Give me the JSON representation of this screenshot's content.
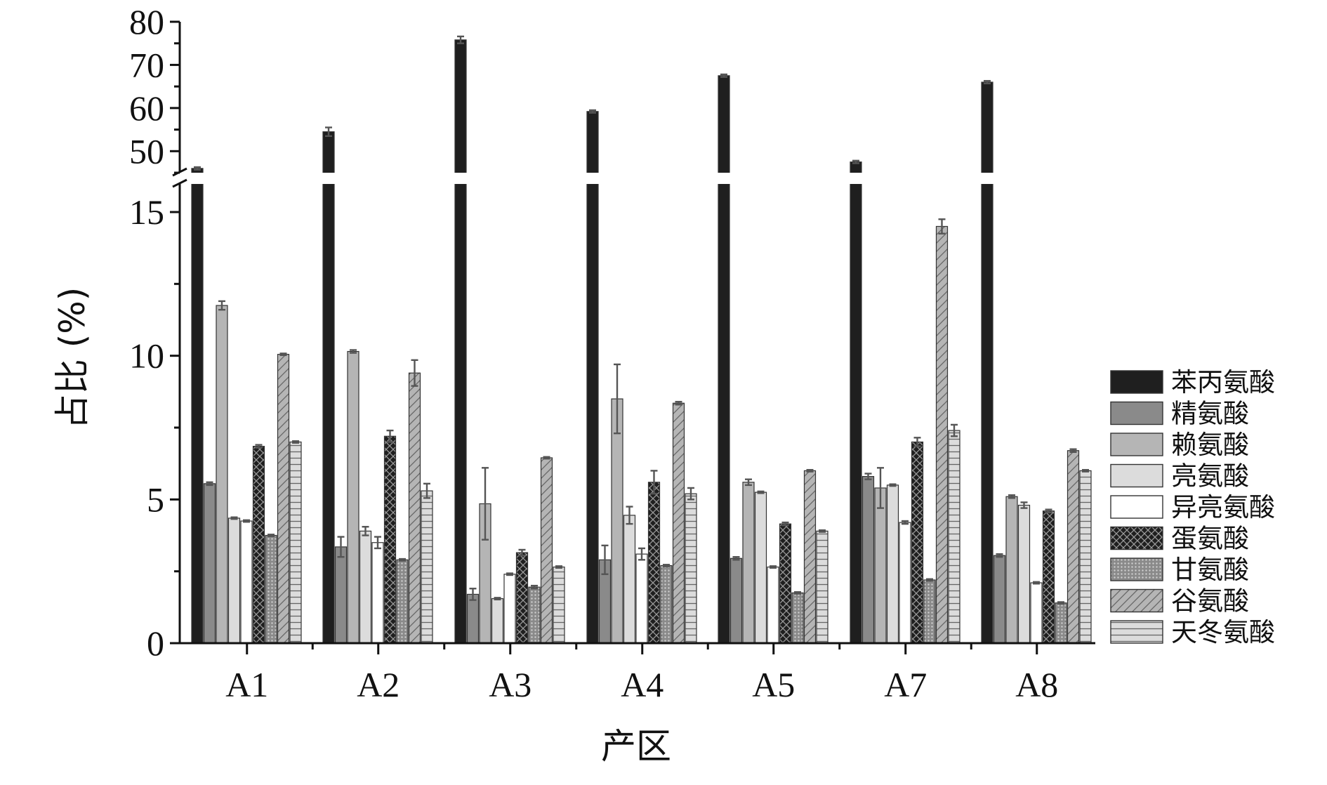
{
  "chart_data": {
    "type": "bar",
    "xlabel": "产区",
    "ylabel": "占比 (%)",
    "categories": [
      "A1",
      "A2",
      "A3",
      "A4",
      "A5",
      "A7",
      "A8"
    ],
    "y_axis_break": {
      "lower_range": [
        0,
        16
      ],
      "upper_range": [
        45,
        80
      ]
    },
    "y_ticks_lower": [
      "0",
      "5",
      "10",
      "15"
    ],
    "y_ticks_upper": [
      "50",
      "60",
      "70",
      "80"
    ],
    "legend_position": "right",
    "series": [
      {
        "name": "苯丙氨酸",
        "fill": "#1f1f1f",
        "pattern": "solid",
        "values": [
          46.0,
          54.5,
          75.8,
          59.2,
          67.5,
          47.5,
          66.0
        ],
        "errors": [
          0.3,
          1.0,
          0.8,
          0.3,
          0.3,
          0.3,
          0.3
        ]
      },
      {
        "name": "精氨酸",
        "fill": "#8a8a8a",
        "pattern": "solid",
        "values": [
          5.55,
          3.35,
          1.7,
          2.9,
          2.95,
          5.8,
          3.05
        ],
        "errors": [
          0.05,
          0.35,
          0.2,
          0.5,
          0.05,
          0.1,
          0.05
        ]
      },
      {
        "name": "赖氨酸",
        "fill": "#b5b5b5",
        "pattern": "solid",
        "values": [
          11.75,
          10.15,
          4.85,
          8.5,
          5.6,
          5.4,
          5.1
        ],
        "errors": [
          0.15,
          0.05,
          1.25,
          1.2,
          0.1,
          0.7,
          0.05
        ]
      },
      {
        "name": "亮氨酸",
        "fill": "#dcdcdc",
        "pattern": "solid",
        "values": [
          4.35,
          3.9,
          1.55,
          4.45,
          5.25,
          5.5,
          4.8
        ],
        "errors": [
          0.03,
          0.15,
          0.03,
          0.3,
          0.03,
          0.03,
          0.1
        ]
      },
      {
        "name": "异亮氨酸",
        "fill": "#ffffff",
        "pattern": "solid",
        "values": [
          4.25,
          3.5,
          2.4,
          3.1,
          2.65,
          4.2,
          2.1
        ],
        "errors": [
          0.03,
          0.2,
          0.03,
          0.2,
          0.03,
          0.05,
          0.03
        ]
      },
      {
        "name": "蛋氨酸",
        "fill": "#1f1f1f",
        "pattern": "crosshatch",
        "values": [
          6.85,
          7.2,
          3.15,
          5.6,
          4.15,
          7.0,
          4.6
        ],
        "errors": [
          0.05,
          0.2,
          0.1,
          0.4,
          0.05,
          0.15,
          0.05
        ]
      },
      {
        "name": "甘氨酸",
        "fill": "#8a8a8a",
        "pattern": "dots",
        "values": [
          3.75,
          2.9,
          1.95,
          2.7,
          1.75,
          2.2,
          1.4
        ],
        "errors": [
          0.03,
          0.03,
          0.05,
          0.03,
          0.03,
          0.03,
          0.03
        ]
      },
      {
        "name": "谷氨酸",
        "fill": "#b5b5b5",
        "pattern": "diagonal",
        "values": [
          10.05,
          9.4,
          6.45,
          8.35,
          6.0,
          14.5,
          6.7
        ],
        "errors": [
          0.03,
          0.45,
          0.03,
          0.05,
          0.03,
          0.25,
          0.05
        ]
      },
      {
        "name": "天冬氨酸",
        "fill": "#dcdcdc",
        "pattern": "horizontal",
        "values": [
          7.0,
          5.3,
          2.65,
          5.2,
          3.9,
          7.4,
          6.0
        ],
        "errors": [
          0.03,
          0.25,
          0.03,
          0.2,
          0.03,
          0.2,
          0.03
        ]
      }
    ]
  }
}
